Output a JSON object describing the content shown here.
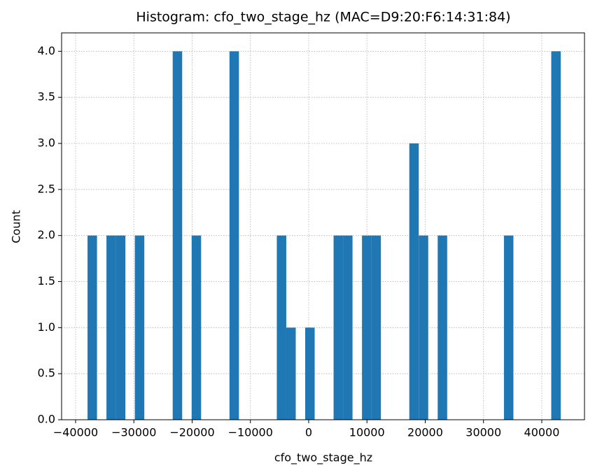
{
  "chart_data": {
    "type": "histogram",
    "title": "Histogram: cfo_two_stage_hz (MAC=D9:20:F6:14:31:84)",
    "x_label": "cfo_two_stage_hz",
    "y_label": "Count",
    "color": "#1f77b4",
    "grid": true,
    "bins": [
      -37950,
      -36326,
      -34702,
      -33078,
      -31454,
      -29830,
      -28206,
      -26582,
      -24958,
      -23334,
      -21710,
      -20086,
      -18462,
      -16838,
      -15214,
      -13590,
      -11966,
      -10342,
      -8718,
      -7094,
      -5470,
      -3846,
      -2222,
      -598,
      1026,
      2650,
      4274,
      5898,
      7522,
      9146,
      10770,
      12394,
      14018,
      15642,
      17266,
      18890,
      20514,
      22138,
      23762,
      25386,
      27010,
      28634,
      30258,
      31882,
      33506,
      35130,
      36754,
      38378,
      40002,
      41626,
      43250
    ],
    "counts": [
      2,
      0,
      2,
      2,
      0,
      2,
      0,
      0,
      0,
      4,
      0,
      2,
      0,
      0,
      0,
      4,
      0,
      0,
      0,
      0,
      2,
      1,
      0,
      1,
      0,
      0,
      2,
      2,
      0,
      2,
      2,
      0,
      0,
      0,
      3,
      2,
      0,
      2,
      0,
      0,
      0,
      0,
      0,
      0,
      2,
      0,
      0,
      0,
      0,
      4
    ],
    "xlim": [
      -42400,
      47330
    ],
    "ylim": [
      0,
      4.2
    ],
    "xticks": [
      {
        "value": -40000,
        "label": "−40000"
      },
      {
        "value": -30000,
        "label": "−30000"
      },
      {
        "value": -20000,
        "label": "−20000"
      },
      {
        "value": -10000,
        "label": "−10000"
      },
      0,
      10000,
      20000,
      30000,
      40000
    ],
    "yticks": [
      {
        "value": 0,
        "label": "0.0"
      },
      {
        "value": 0.5,
        "label": "0.5"
      },
      {
        "value": 1,
        "label": "1.0"
      },
      {
        "value": 1.5,
        "label": "1.5"
      },
      {
        "value": 2,
        "label": "2.0"
      },
      {
        "value": 2.5,
        "label": "2.5"
      },
      {
        "value": 3,
        "label": "3.0"
      },
      {
        "value": 3.5,
        "label": "3.5"
      },
      {
        "value": 4,
        "label": "4.0"
      }
    ]
  }
}
